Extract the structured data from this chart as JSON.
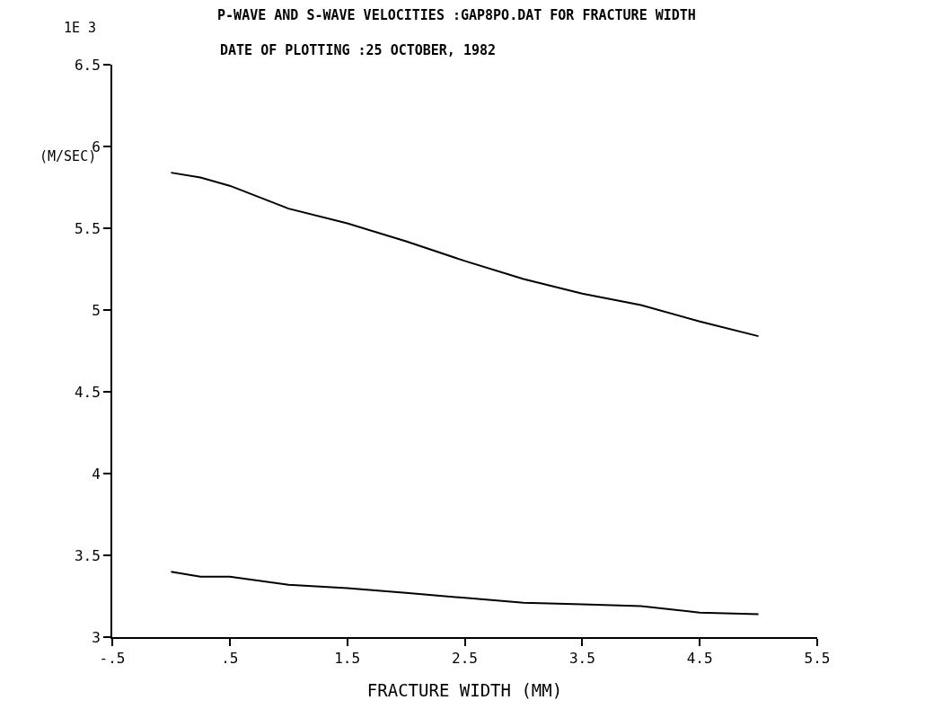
{
  "chart_data": {
    "type": "line",
    "title": "P-WAVE AND S-WAVE VELOCITIES :GAP8PO.DAT FOR FRACTURE WIDTH",
    "subtitle": "DATE OF PLOTTING :25 OCTOBER, 1982",
    "xlabel": "FRACTURE WIDTH (MM)",
    "ylabel": "(M/SEC)",
    "annotations": [
      "1E 3"
    ],
    "x": [
      0,
      0.25,
      0.5,
      1,
      1.5,
      2,
      2.5,
      3,
      3.5,
      4,
      4.5,
      5
    ],
    "series": [
      {
        "color": "#000000",
        "values": [
          5.84,
          5.81,
          5.76,
          5.62,
          5.53,
          5.42,
          5.3,
          5.19,
          5.1,
          5.03,
          4.93,
          4.84
        ]
      },
      {
        "color": "#000000",
        "values": [
          3.4,
          3.37,
          3.37,
          3.32,
          3.3,
          3.27,
          3.24,
          3.21,
          3.2,
          3.19,
          3.15,
          3.14
        ]
      }
    ],
    "xlim": [
      -0.5,
      5.5
    ],
    "xticks": [
      {
        "value": -0.5,
        "label": "-.5"
      },
      {
        "value": 0.5,
        "label": ".5"
      },
      1.5,
      2.5,
      3.5,
      4.5,
      5.5
    ],
    "ylim": [
      3,
      6.5
    ],
    "yticks": [
      3,
      3.5,
      4,
      4.5,
      5,
      5.5,
      6,
      6.5
    ],
    "marker": "none",
    "line_style": "solid"
  }
}
